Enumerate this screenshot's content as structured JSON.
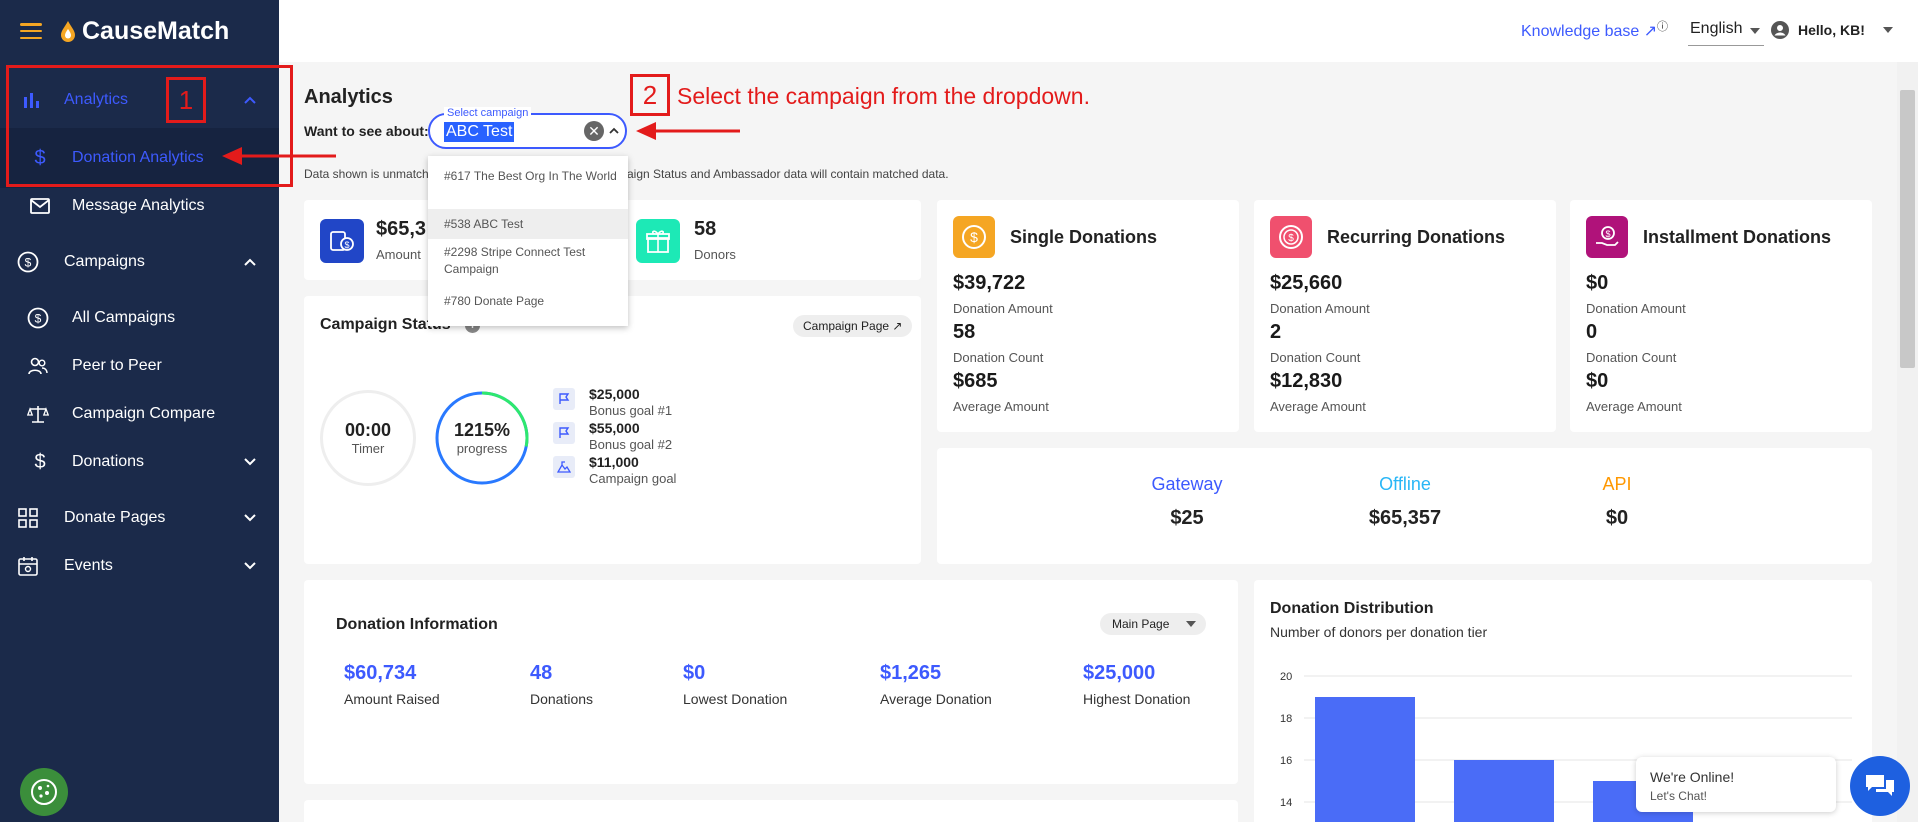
{
  "app": {
    "name": "CauseMatch"
  },
  "sidebar": {
    "analytics": "Analytics",
    "donation_analytics": "Donation Analytics",
    "message_analytics": "Message Analytics",
    "campaigns": "Campaigns",
    "all_campaigns": "All Campaigns",
    "peer_to_peer": "Peer to Peer",
    "campaign_compare": "Campaign Compare",
    "donations": "Donations",
    "donate_pages": "Donate Pages",
    "events": "Events"
  },
  "topbar": {
    "knowledge_base": "Knowledge base ↗",
    "language": "English",
    "greeting": "Hello, KB!"
  },
  "annotation": {
    "step1": "1",
    "step2": "2",
    "instruction": "Select the campaign from the dropdown."
  },
  "page": {
    "title": "Analytics",
    "want_label": "Want to see about:",
    "select_label": "Select campaign",
    "select_value": "ABC Test",
    "notice": "Data shown is unmatched. Campaign Status and Ambassador data will contain matched data.",
    "notice_visible_left": "Data shown is unmatch",
    "notice_visible_right": "aign Status and Ambassador data will contain matched data.",
    "dropdown_options": [
      "#617 The Best Org In The World",
      "#538 ABC Test",
      "#2298 Stripe Connect Test Campaign",
      "#780 Donate Page"
    ]
  },
  "summary": {
    "amount_value": "$65,3",
    "amount_label": "Amount",
    "donors_value": "58",
    "donors_label": "Donors"
  },
  "campaign_status": {
    "title": "Campaign Status",
    "page_button": "Campaign Page ↗",
    "timer_value": "00:00",
    "timer_label": "Timer",
    "progress_value": "1215%",
    "progress_label": "progress",
    "progress_fraction": 1.0,
    "goals": [
      {
        "amount": "$25,000",
        "label": "Bonus goal #1"
      },
      {
        "amount": "$55,000",
        "label": "Bonus goal #2"
      },
      {
        "amount": "$11,000",
        "label": "Campaign goal"
      }
    ]
  },
  "donation_types": [
    {
      "title": "Single Donations",
      "amount": "$39,722",
      "amount_label": "Donation Amount",
      "count": "58",
      "count_label": "Donation Count",
      "avg": "$685",
      "avg_label": "Average Amount",
      "color": "#f5a623"
    },
    {
      "title": "Recurring Donations",
      "amount": "$25,660",
      "amount_label": "Donation Amount",
      "count": "2",
      "count_label": "Donation Count",
      "avg": "$12,830",
      "avg_label": "Average Amount",
      "color": "#f0506e"
    },
    {
      "title": "Installment Donations",
      "amount": "$0",
      "amount_label": "Donation Amount",
      "count": "0",
      "count_label": "Donation Count",
      "avg": "$0",
      "avg_label": "Average Amount",
      "color": "#b0127a"
    }
  ],
  "sources": [
    {
      "label": "Gateway",
      "value": "$25",
      "color": "#3d5afe"
    },
    {
      "label": "Offline",
      "value": "$65,357",
      "color": "#29b6f6"
    },
    {
      "label": "API",
      "value": "$0",
      "color": "#ff9800"
    }
  ],
  "donation_info": {
    "title": "Donation Information",
    "page_select": "Main Page",
    "stats": [
      {
        "value": "$60,734",
        "label": "Amount Raised"
      },
      {
        "value": "48",
        "label": "Donations"
      },
      {
        "value": "$0",
        "label": "Lowest Donation"
      },
      {
        "value": "$1,265",
        "label": "Average Donation"
      },
      {
        "value": "$25,000",
        "label": "Highest Donation"
      }
    ]
  },
  "distribution": {
    "title": "Donation Distribution",
    "subtitle": "Number of donors per donation tier"
  },
  "chart_data": {
    "type": "bar",
    "title": "Donation Distribution",
    "subtitle": "Number of donors per donation tier",
    "yticks": [
      "20",
      "18",
      "16",
      "14"
    ],
    "ylim": [
      13,
      20
    ],
    "values": [
      19,
      16,
      15
    ],
    "color": "#4a6cf7"
  },
  "chat": {
    "line1": "We're Online!",
    "line2": "Let's Chat!"
  },
  "colors": {
    "sidebar": "#1b2a4a",
    "accent": "#3d5afe",
    "annotation": "#e31b1b"
  }
}
